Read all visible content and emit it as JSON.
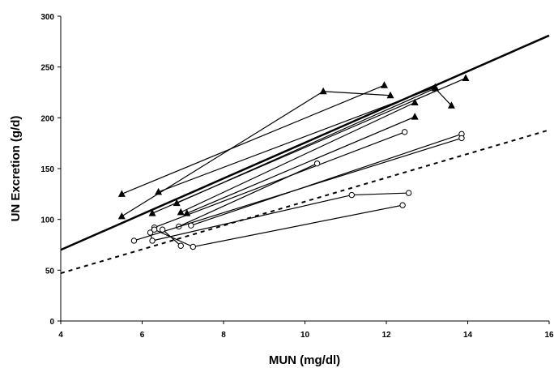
{
  "chart_data": {
    "type": "scatter",
    "title": "",
    "xlabel": "MUN (mg/dl)",
    "ylabel": "UN Excretion (g/d)",
    "xlim": [
      4,
      16
    ],
    "ylim": [
      0,
      300
    ],
    "x_ticks": [
      4,
      6,
      8,
      10,
      12,
      14,
      16
    ],
    "y_ticks": [
      0,
      50,
      100,
      150,
      200,
      250,
      300
    ],
    "grid": false,
    "legend": "none",
    "reference_lines": [
      {
        "style": "solid",
        "color": "#000000",
        "points": [
          [
            4,
            70
          ],
          [
            16,
            281
          ]
        ]
      },
      {
        "style": "dashed",
        "color": "#000000",
        "points": [
          [
            4,
            47
          ],
          [
            16,
            188
          ]
        ]
      }
    ],
    "series": [
      {
        "marker": "triangle",
        "points": [
          [
            5.5,
            125
          ],
          [
            11.95,
            232
          ]
        ]
      },
      {
        "marker": "triangle",
        "points": [
          [
            5.5,
            103
          ],
          [
            10.45,
            226
          ],
          [
            12.1,
            222
          ]
        ]
      },
      {
        "marker": "triangle",
        "points": [
          [
            6.4,
            127
          ],
          [
            13.2,
            230
          ]
        ]
      },
      {
        "marker": "triangle",
        "points": [
          [
            6.25,
            106
          ],
          [
            13.95,
            239
          ]
        ]
      },
      {
        "marker": "triangle",
        "points": [
          [
            6.85,
            116
          ],
          [
            13.2,
            229
          ],
          [
            13.6,
            212
          ]
        ]
      },
      {
        "marker": "triangle",
        "points": [
          [
            6.95,
            107
          ],
          [
            12.7,
            215
          ]
        ]
      },
      {
        "marker": "triangle",
        "points": [
          [
            7.1,
            106
          ],
          [
            12.7,
            201
          ]
        ]
      },
      {
        "marker": "circle",
        "points": [
          [
            6.3,
            92
          ],
          [
            12.45,
            186
          ]
        ]
      },
      {
        "marker": "circle",
        "points": [
          [
            6.9,
            93
          ],
          [
            10.3,
            155
          ]
        ]
      },
      {
        "marker": "circle",
        "points": [
          [
            7.2,
            94
          ],
          [
            13.85,
            184
          ]
        ]
      },
      {
        "marker": "circle",
        "points": [
          [
            5.8,
            79
          ],
          [
            13.85,
            180
          ]
        ]
      },
      {
        "marker": "circle",
        "points": [
          [
            6.2,
            87
          ],
          [
            6.25,
            79
          ],
          [
            11.15,
            124
          ],
          [
            12.55,
            126
          ]
        ]
      },
      {
        "marker": "circle",
        "points": [
          [
            6.3,
            90
          ],
          [
            7.25,
            73
          ],
          [
            12.4,
            114
          ]
        ]
      },
      {
        "marker": "circle",
        "points": [
          [
            6.5,
            90
          ],
          [
            6.95,
            74
          ]
        ]
      }
    ]
  }
}
